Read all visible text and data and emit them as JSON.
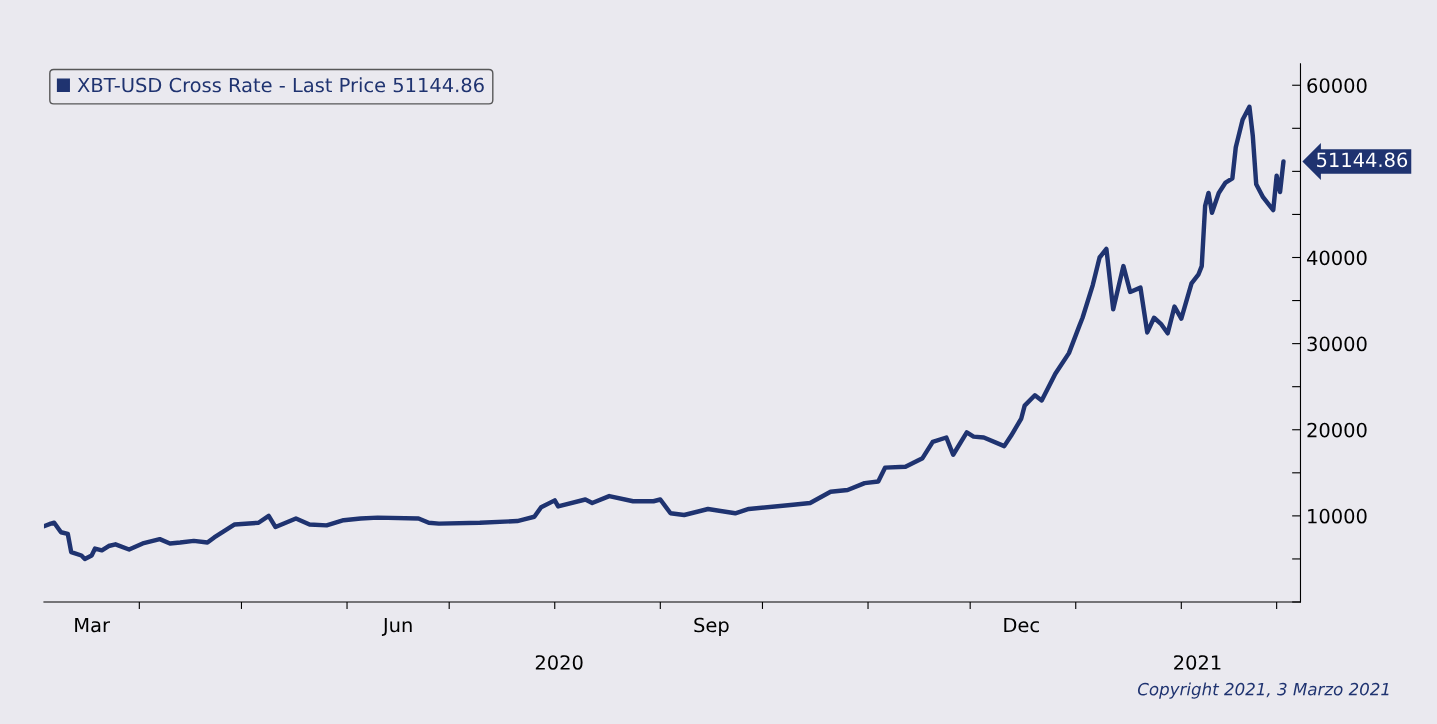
{
  "chart_data": {
    "type": "line",
    "x": [
      "2020-03-04",
      "2020-03-06",
      "2020-03-07",
      "2020-03-09",
      "2020-03-11",
      "2020-03-12",
      "2020-03-15",
      "2020-03-16",
      "2020-03-18",
      "2020-03-19",
      "2020-03-21",
      "2020-03-23",
      "2020-03-25",
      "2020-03-29",
      "2020-04-02",
      "2020-04-07",
      "2020-04-10",
      "2020-04-13",
      "2020-04-17",
      "2020-04-21",
      "2020-04-23",
      "2020-04-29",
      "2020-05-06",
      "2020-05-09",
      "2020-05-11",
      "2020-05-17",
      "2020-05-21",
      "2020-05-26",
      "2020-05-31",
      "2020-06-05",
      "2020-06-10",
      "2020-06-22",
      "2020-06-25",
      "2020-06-28",
      "2020-07-10",
      "2020-07-21",
      "2020-07-23",
      "2020-07-26",
      "2020-07-28",
      "2020-08-01",
      "2020-08-02",
      "2020-08-10",
      "2020-08-12",
      "2020-08-17",
      "2020-08-24",
      "2020-08-30",
      "2020-09-01",
      "2020-09-04",
      "2020-09-08",
      "2020-09-15",
      "2020-09-23",
      "2020-09-27",
      "2020-10-10",
      "2020-10-15",
      "2020-10-21",
      "2020-10-26",
      "2020-10-31",
      "2020-11-04",
      "2020-11-06",
      "2020-11-12",
      "2020-11-17",
      "2020-11-20",
      "2020-11-24",
      "2020-11-26",
      "2020-11-30",
      "2020-12-02",
      "2020-12-05",
      "2020-12-11",
      "2020-12-13",
      "2020-12-16",
      "2020-12-17",
      "2020-12-20",
      "2020-12-22",
      "2020-12-26",
      "2020-12-30",
      "2021-01-02",
      "2021-01-03",
      "2021-01-06",
      "2021-01-08",
      "2021-01-10",
      "2021-01-12",
      "2021-01-15",
      "2021-01-17",
      "2021-01-20",
      "2021-01-22",
      "2021-01-24",
      "2021-01-26",
      "2021-01-28",
      "2021-01-30",
      "2021-02-01",
      "2021-02-04",
      "2021-02-06",
      "2021-02-07",
      "2021-02-08",
      "2021-02-09",
      "2021-02-10",
      "2021-02-12",
      "2021-02-14",
      "2021-02-16",
      "2021-02-17",
      "2021-02-19",
      "2021-02-21",
      "2021-02-22",
      "2021-02-23",
      "2021-02-25",
      "2021-02-27",
      "2021-02-28",
      "2021-03-01",
      "2021-03-02",
      "2021-03-03"
    ],
    "series": [
      {
        "name": "XBT-USD Cross Rate - Last Price 51144.86",
        "color": "#1f3370",
        "values": [
          8800,
          9100,
          9200,
          8100,
          7900,
          5800,
          5400,
          5000,
          5400,
          6200,
          6000,
          6500,
          6700,
          6100,
          6800,
          7300,
          6800,
          6900,
          7100,
          6900,
          7500,
          9000,
          9200,
          10000,
          8700,
          9700,
          9000,
          8900,
          9500,
          9700,
          9800,
          9700,
          9200,
          9100,
          9200,
          9400,
          9600,
          9900,
          11000,
          11800,
          11100,
          11900,
          11500,
          12300,
          11700,
          11700,
          11900,
          10300,
          10100,
          10800,
          10300,
          10800,
          11300,
          11500,
          12800,
          13000,
          13800,
          14000,
          15600,
          15700,
          16700,
          18600,
          19100,
          17100,
          19700,
          19200,
          19100,
          18100,
          19300,
          21300,
          22800,
          24000,
          23400,
          26500,
          28900,
          32000,
          33000,
          36800,
          40000,
          41000,
          34000,
          39000,
          36000,
          36500,
          31300,
          33000,
          32300,
          31200,
          34300,
          32900,
          37000,
          38000,
          39000,
          46000,
          47500,
          45200,
          47500,
          48700,
          49200,
          52800,
          56000,
          57500,
          54100,
          48500,
          47000,
          46000,
          45500,
          49500,
          47600,
          51144.86
        ]
      }
    ],
    "xlim": [
      "2020-03-04",
      "2021-03-08"
    ],
    "xticks": [
      {
        "value": "2020-03-18",
        "label": "Mar"
      },
      {
        "value": "2020-06-16",
        "label": "Jun"
      },
      {
        "value": "2020-09-16",
        "label": "Sep"
      },
      {
        "value": "2020-12-16",
        "label": "Dec"
      },
      {
        "value": "2020-04-01",
        "label": null
      },
      {
        "value": "2020-05-01",
        "label": null
      },
      {
        "value": "2020-06-01",
        "label": null
      },
      {
        "value": "2020-07-01",
        "label": null
      },
      {
        "value": "2020-08-01",
        "label": null
      },
      {
        "value": "2020-09-01",
        "label": null
      },
      {
        "value": "2020-10-01",
        "label": null
      },
      {
        "value": "2020-11-01",
        "label": null
      },
      {
        "value": "2020-12-01",
        "label": null
      },
      {
        "value": "2021-01-01",
        "label": null
      },
      {
        "value": "2021-02-01",
        "label": null
      },
      {
        "value": "2021-03-01",
        "label": null
      }
    ],
    "ylim": [
      0,
      62500
    ],
    "yticks": [
      {
        "value": 0,
        "label": null
      },
      {
        "value": 5000,
        "label": null
      },
      10000,
      {
        "value": 15000,
        "label": null
      },
      20000,
      {
        "value": 25000,
        "label": null
      },
      30000,
      {
        "value": 35000,
        "label": null
      },
      40000,
      {
        "value": 45000,
        "label": null
      },
      {
        "value": 50000,
        "label": null
      },
      {
        "value": 55000,
        "label": null
      },
      60000
    ],
    "legend": "top left",
    "grid": false,
    "annotations": [
      {
        "text": "51144.86",
        "x": "2021-03-03",
        "y": 51144.86
      },
      "2020",
      "2021",
      "Copyright 2021, 3 Marzo 2021"
    ]
  }
}
